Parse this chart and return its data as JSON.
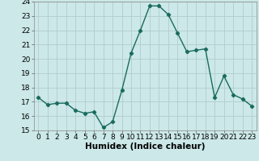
{
  "x": [
    0,
    1,
    2,
    3,
    4,
    5,
    6,
    7,
    8,
    9,
    10,
    11,
    12,
    13,
    14,
    15,
    16,
    17,
    18,
    19,
    20,
    21,
    22,
    23
  ],
  "y": [
    17.3,
    16.8,
    16.9,
    16.9,
    16.4,
    16.2,
    16.3,
    15.2,
    15.6,
    17.8,
    20.4,
    22.0,
    23.7,
    23.7,
    23.1,
    21.8,
    20.5,
    20.6,
    20.7,
    17.3,
    18.8,
    17.5,
    17.2,
    16.7
  ],
  "line_color": "#1a6b5e",
  "marker": "D",
  "marker_size": 2.2,
  "bg_color": "#cce8e8",
  "grid_color": "#b0cccc",
  "xlabel": "Humidex (Indice chaleur)",
  "ylim": [
    15,
    24
  ],
  "xlim": [
    -0.5,
    23.5
  ],
  "yticks": [
    15,
    16,
    17,
    18,
    19,
    20,
    21,
    22,
    23,
    24
  ],
  "xticks": [
    0,
    1,
    2,
    3,
    4,
    5,
    6,
    7,
    8,
    9,
    10,
    11,
    12,
    13,
    14,
    15,
    16,
    17,
    18,
    19,
    20,
    21,
    22,
    23
  ],
  "xlabel_fontsize": 7.5,
  "tick_fontsize": 6.5,
  "line_width": 1.0
}
